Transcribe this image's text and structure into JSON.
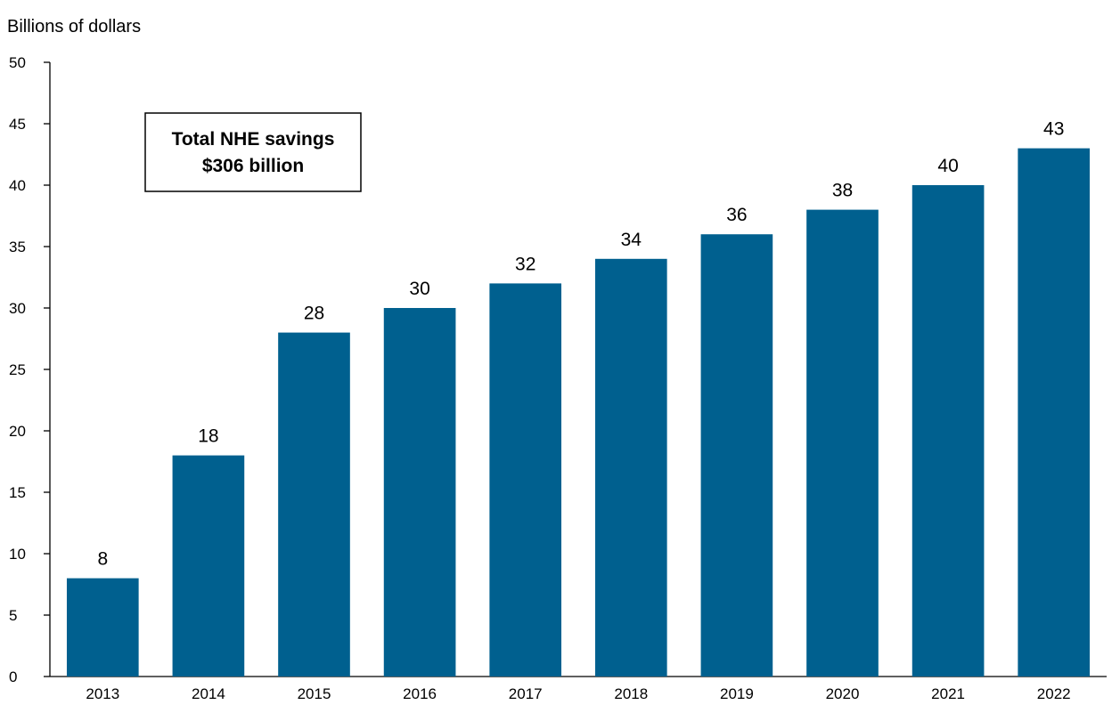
{
  "chart_data": {
    "type": "bar",
    "ylabel": "Billions of dollars",
    "categories": [
      "2013",
      "2014",
      "2015",
      "2016",
      "2017",
      "2018",
      "2019",
      "2020",
      "2021",
      "2022"
    ],
    "values": [
      8,
      18,
      28,
      30,
      32,
      34,
      36,
      38,
      40,
      43
    ],
    "data_labels": [
      "8",
      "18",
      "28",
      "30",
      "32",
      "34",
      "36",
      "38",
      "40",
      "43"
    ],
    "ylim": [
      0,
      50
    ],
    "yticks": [
      0,
      5,
      10,
      15,
      20,
      25,
      30,
      35,
      40,
      45,
      50
    ],
    "ytick_labels": [
      "0",
      "5",
      "10",
      "15",
      "20",
      "25",
      "30",
      "35",
      "40",
      "45",
      "50"
    ],
    "grid": false,
    "bar_color": "#00608f",
    "annotation": {
      "line1": "Total NHE savings",
      "line2": "$306 billion"
    }
  }
}
